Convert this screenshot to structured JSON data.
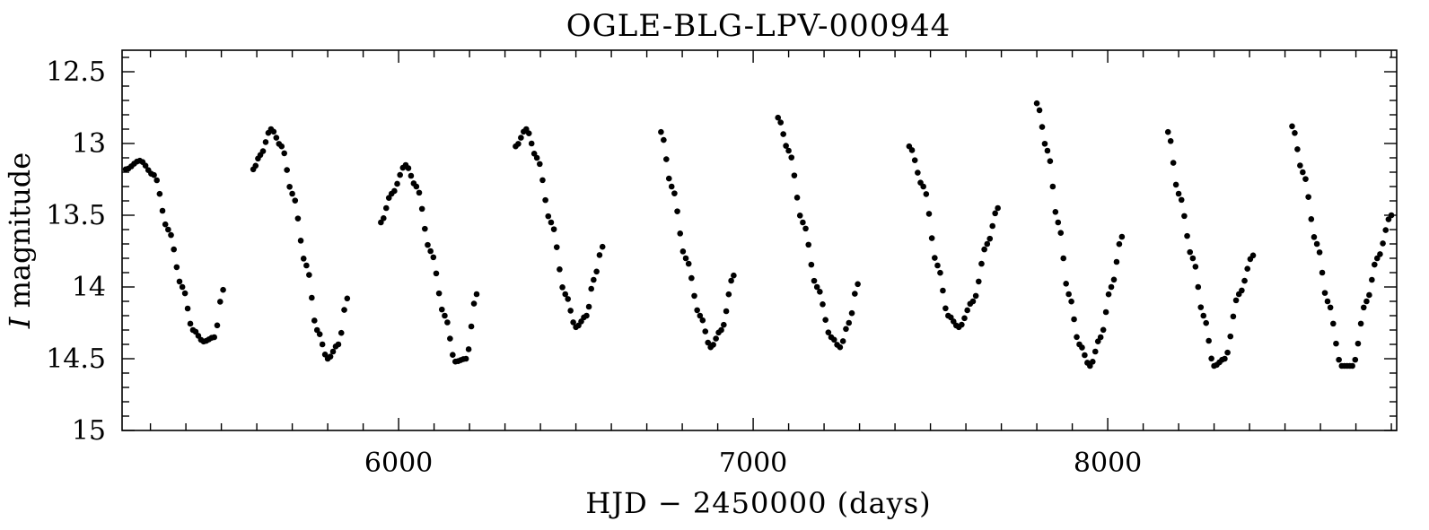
{
  "chart_data": {
    "type": "scatter",
    "title": "OGLE-BLG-LPV-000944",
    "xlabel": "HJD − 2450000 (days)",
    "ylabel_italic": "I",
    "ylabel_rest": " magnitude",
    "x_tick_labels": [
      "6000",
      "7000",
      "8000"
    ],
    "y_tick_labels": [
      "12.5",
      "13",
      "13.5",
      "14",
      "14.5",
      "15"
    ],
    "xlim": [
      5220,
      8815
    ],
    "ylim": [
      15.0,
      12.35
    ],
    "y_inverted": true,
    "x_minor_step": 100,
    "y_minor_step": 0.1,
    "grid": false,
    "marker_color": "#000000",
    "segments": [
      [
        [
          5230,
          13.18
        ],
        [
          5270,
          13.12
        ],
        [
          5310,
          13.22
        ],
        [
          5350,
          13.6
        ],
        [
          5390,
          14.0
        ],
        [
          5420,
          14.3
        ],
        [
          5450,
          14.38
        ],
        [
          5480,
          14.35
        ],
        [
          5505,
          14.02
        ]
      ],
      [
        [
          5590,
          13.18
        ],
        [
          5610,
          13.08
        ],
        [
          5640,
          12.9
        ],
        [
          5670,
          13.02
        ],
        [
          5700,
          13.35
        ],
        [
          5740,
          13.85
        ],
        [
          5770,
          14.3
        ],
        [
          5800,
          14.5
        ],
        [
          5830,
          14.4
        ],
        [
          5855,
          14.08
        ]
      ],
      [
        [
          5950,
          13.55
        ],
        [
          5980,
          13.35
        ],
        [
          6020,
          13.15
        ],
        [
          6050,
          13.3
        ],
        [
          6090,
          13.75
        ],
        [
          6130,
          14.2
        ],
        [
          6160,
          14.52
        ],
        [
          6190,
          14.5
        ],
        [
          6220,
          14.05
        ]
      ],
      [
        [
          6330,
          13.02
        ],
        [
          6360,
          12.9
        ],
        [
          6390,
          13.1
        ],
        [
          6430,
          13.55
        ],
        [
          6470,
          14.05
        ],
        [
          6500,
          14.28
        ],
        [
          6530,
          14.2
        ],
        [
          6550,
          13.95
        ],
        [
          6575,
          13.72
        ]
      ],
      [
        [
          6740,
          12.92
        ],
        [
          6770,
          13.3
        ],
        [
          6810,
          13.8
        ],
        [
          6850,
          14.2
        ],
        [
          6880,
          14.42
        ],
        [
          6910,
          14.3
        ],
        [
          6945,
          13.92
        ]
      ],
      [
        [
          7070,
          12.82
        ],
        [
          7100,
          13.05
        ],
        [
          7140,
          13.55
        ],
        [
          7180,
          14.0
        ],
        [
          7220,
          14.35
        ],
        [
          7245,
          14.42
        ],
        [
          7270,
          14.25
        ],
        [
          7295,
          13.98
        ]
      ],
      [
        [
          7440,
          13.02
        ],
        [
          7480,
          13.3
        ],
        [
          7520,
          13.85
        ],
        [
          7550,
          14.2
        ],
        [
          7580,
          14.28
        ],
        [
          7620,
          14.1
        ],
        [
          7660,
          13.7
        ],
        [
          7690,
          13.45
        ]
      ],
      [
        [
          7800,
          12.72
        ],
        [
          7830,
          13.05
        ],
        [
          7860,
          13.55
        ],
        [
          7890,
          14.05
        ],
        [
          7920,
          14.4
        ],
        [
          7950,
          14.55
        ],
        [
          7980,
          14.35
        ],
        [
          8010,
          14.0
        ],
        [
          8040,
          13.65
        ]
      ],
      [
        [
          8170,
          12.92
        ],
        [
          8200,
          13.35
        ],
        [
          8240,
          13.8
        ],
        [
          8270,
          14.2
        ],
        [
          8300,
          14.55
        ],
        [
          8330,
          14.5
        ],
        [
          8370,
          14.05
        ],
        [
          8410,
          13.78
        ]
      ],
      [
        [
          8520,
          12.88
        ],
        [
          8550,
          13.2
        ],
        [
          8590,
          13.7
        ],
        [
          8620,
          14.1
        ],
        [
          8660,
          14.55
        ],
        [
          8690,
          14.55
        ],
        [
          8730,
          14.1
        ],
        [
          8760,
          13.8
        ],
        [
          8800,
          13.5
        ]
      ]
    ]
  }
}
